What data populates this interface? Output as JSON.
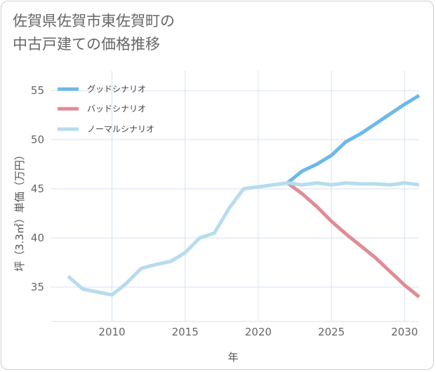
{
  "header": {
    "title_line1": "佐賀県佐賀市東佐賀町の",
    "title_line2": "中古戸建ての価格推移"
  },
  "chart_data": {
    "type": "line",
    "title": "佐賀県佐賀市東佐賀町の中古戸建ての価格推移",
    "xlabel": "年",
    "ylabel": "坪（3.3㎡）単価（万円）",
    "xlim": [
      2005.8,
      2031
    ],
    "ylim": [
      31.5,
      57
    ],
    "xticks": [
      2010,
      2015,
      2020,
      2025,
      2030
    ],
    "yticks": [
      35,
      40,
      45,
      50,
      55
    ],
    "grid": true,
    "legend_position": "top-left",
    "series": [
      {
        "name": "グッドシナリオ",
        "color": "#6cb8ea",
        "x": [
          2022,
          2023,
          2024,
          2025,
          2026,
          2027,
          2028,
          2029,
          2030,
          2031
        ],
        "y": [
          45.6,
          46.8,
          47.5,
          48.4,
          49.8,
          50.6,
          51.6,
          52.6,
          53.6,
          54.5
        ]
      },
      {
        "name": "バッドシナリオ",
        "color": "#e08c95",
        "x": [
          2022,
          2023,
          2024,
          2025,
          2026,
          2027,
          2028,
          2029,
          2030,
          2031
        ],
        "y": [
          45.6,
          44.5,
          43.2,
          41.7,
          40.4,
          39.2,
          38.0,
          36.6,
          35.2,
          34.0
        ]
      },
      {
        "name": "ノーマルシナリオ",
        "color": "#b6dcee",
        "x": [
          2007,
          2008,
          2009,
          2010,
          2011,
          2012,
          2013,
          2014,
          2015,
          2016,
          2017,
          2018,
          2019,
          2020,
          2021,
          2022,
          2023,
          2024,
          2025,
          2026,
          2027,
          2028,
          2029,
          2030,
          2031
        ],
        "y": [
          36.1,
          34.8,
          34.5,
          34.2,
          35.4,
          36.9,
          37.3,
          37.6,
          38.5,
          40.0,
          40.5,
          43.0,
          45.0,
          45.2,
          45.4,
          45.6,
          45.4,
          45.6,
          45.4,
          45.6,
          45.5,
          45.5,
          45.4,
          45.6,
          45.4
        ]
      }
    ]
  }
}
